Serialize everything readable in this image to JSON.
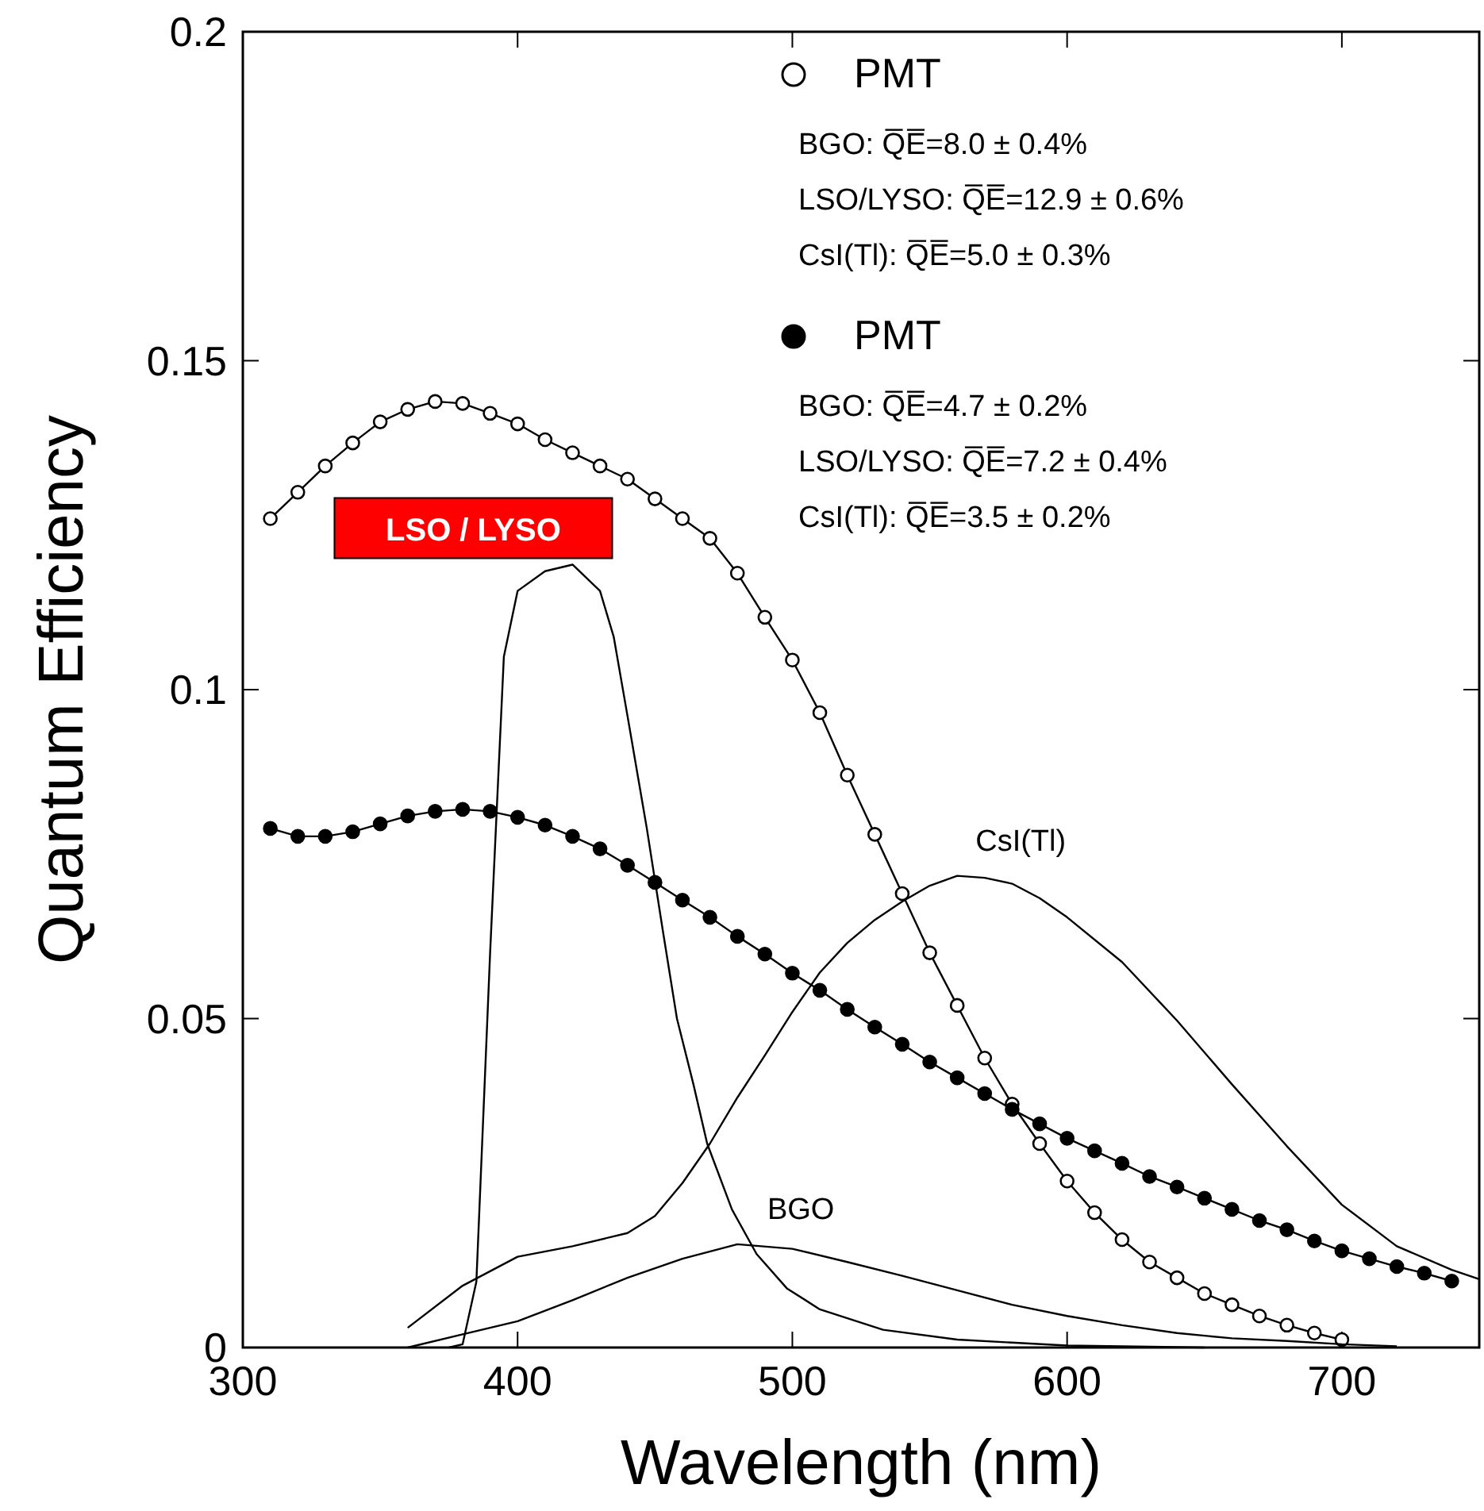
{
  "chart_data": {
    "type": "line",
    "xlabel": "Wavelength (nm)",
    "ylabel": "Quantum Efficiency",
    "xlim": [
      300,
      750
    ],
    "ylim": [
      0,
      0.2
    ],
    "xticks": [
      300,
      400,
      500,
      600,
      700
    ],
    "yticks": [
      0,
      0.05,
      {
        "value": 0.1,
        "label": "0.1"
      },
      0.15,
      {
        "value": 0.2,
        "label": "0.2"
      }
    ],
    "legend": "top right",
    "grid": false,
    "series": [
      {
        "name": "PMT",
        "color": "#000000",
        "marker": "circle",
        "x": [
          310,
          320,
          330,
          340,
          350,
          360,
          370,
          380,
          390,
          400,
          410,
          420,
          430,
          440,
          450,
          460,
          470,
          480,
          490,
          500,
          510,
          520,
          530,
          540,
          550,
          560,
          570,
          580,
          590,
          600,
          610,
          620,
          630,
          640,
          650,
          660,
          670,
          680,
          690,
          700
        ],
        "values": [
          0.126,
          0.13,
          0.134,
          0.1375,
          0.1407,
          0.1426,
          0.1438,
          0.1435,
          0.142,
          0.1404,
          0.138,
          0.136,
          0.134,
          0.132,
          0.129,
          0.126,
          0.123,
          0.1177,
          0.111,
          0.1045,
          0.0965,
          0.087,
          0.078,
          0.069,
          0.06,
          0.052,
          0.044,
          0.037,
          0.031,
          0.0253,
          0.0205,
          0.0164,
          0.013,
          0.0106,
          0.0082,
          0.0065,
          0.0048,
          0.0034,
          0.0022,
          0.0012
        ]
      },
      {
        "name": "PMT",
        "color": "#000000",
        "marker": "circle",
        "x": [
          310,
          320,
          330,
          340,
          350,
          360,
          370,
          380,
          390,
          400,
          410,
          420,
          430,
          440,
          450,
          460,
          470,
          480,
          490,
          500,
          510,
          520,
          530,
          540,
          550,
          560,
          570,
          580,
          590,
          600,
          610,
          620,
          630,
          640,
          650,
          660,
          670,
          680,
          690,
          700,
          710,
          720,
          730,
          740
        ],
        "values": [
          0.0789,
          0.0777,
          0.0777,
          0.0784,
          0.0796,
          0.0808,
          0.0815,
          0.0818,
          0.0815,
          0.0806,
          0.0794,
          0.0777,
          0.0758,
          0.0733,
          0.0707,
          0.068,
          0.0654,
          0.0625,
          0.0598,
          0.0569,
          0.0543,
          0.0514,
          0.0487,
          0.0461,
          0.0434,
          0.041,
          0.0386,
          0.0362,
          0.034,
          0.0318,
          0.0299,
          0.028,
          0.026,
          0.0244,
          0.0227,
          0.021,
          0.0193,
          0.0179,
          0.0162,
          0.0147,
          0.0135,
          0.0123,
          0.0113,
          0.0101
        ]
      },
      {
        "name": "LSO / LYSO",
        "color": "#000000",
        "marker": "none",
        "x": [
          375,
          380,
          385,
          390,
          395,
          400,
          410,
          420,
          430,
          435,
          440,
          447,
          453,
          458,
          464,
          469,
          478,
          487,
          498,
          510,
          533,
          560,
          600,
          650
        ],
        "values": [
          0,
          0.0005,
          0.01,
          0.06,
          0.105,
          0.115,
          0.118,
          0.119,
          0.115,
          0.108,
          0.096,
          0.079,
          0.063,
          0.05,
          0.04,
          0.031,
          0.021,
          0.0142,
          0.009,
          0.0058,
          0.0027,
          0.0012,
          0.0003,
          0
        ]
      },
      {
        "name": "CsI(Tl)",
        "color": "#000000",
        "marker": "none",
        "x": [
          360,
          380,
          400,
          420,
          440,
          450,
          460,
          470,
          480,
          490,
          500,
          510,
          520,
          530,
          540,
          550,
          560,
          570,
          580,
          590,
          600,
          620,
          640,
          660,
          680,
          700,
          720,
          740,
          750
        ],
        "values": [
          0.003,
          0.0094,
          0.0138,
          0.0154,
          0.0174,
          0.02,
          0.025,
          0.031,
          0.038,
          0.0444,
          0.051,
          0.057,
          0.0615,
          0.065,
          0.0678,
          0.0702,
          0.0717,
          0.0714,
          0.0705,
          0.0683,
          0.0654,
          0.0586,
          0.0497,
          0.04,
          0.0306,
          0.0217,
          0.0154,
          0.0118,
          0.0104
        ]
      },
      {
        "name": "BGO",
        "color": "#000000",
        "marker": "none",
        "x": [
          360,
          380,
          400,
          420,
          440,
          460,
          480,
          500,
          520,
          540,
          560,
          580,
          600,
          620,
          640,
          660,
          680,
          700,
          720
        ],
        "values": [
          0,
          0.002,
          0.004,
          0.0072,
          0.0106,
          0.0135,
          0.0157,
          0.015,
          0.013,
          0.0109,
          0.0087,
          0.0065,
          0.0048,
          0.0034,
          0.0022,
          0.0014,
          0.001,
          0.0005,
          0.0002
        ]
      }
    ],
    "annotations": [
      "BGO: Q̅E̅=8.0 ± 0.4%",
      "LSO/LYSO: Q̅E̅=12.9 ± 0.6%",
      "CsI(Tl): Q̅E̅=5.0 ± 0.3%",
      "BGO: Q̅E̅=4.7 ± 0.2%",
      "LSO/LYSO: Q̅E̅=7.2 ± 0.4%",
      "CsI(Tl): Q̅E̅=3.5 ± 0.2%"
    ]
  }
}
